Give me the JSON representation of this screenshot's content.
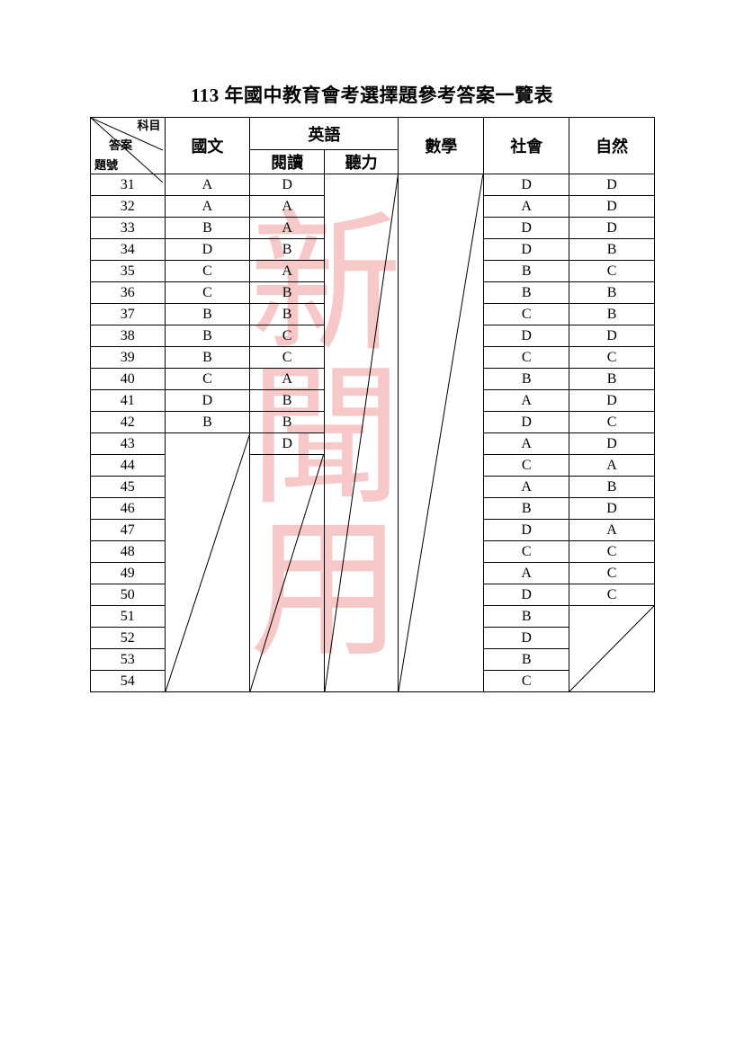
{
  "title": "113 年國中教育會考選擇題參考答案一覽表",
  "watermark_text": "新聞用",
  "watermark_color": "#f7c8c8",
  "border_color": "#000000",
  "corner_labels": {
    "top": "科目",
    "mid": "答案",
    "bot": "題號"
  },
  "columns": {
    "guowen": "國文",
    "english": "英語",
    "english_read": "閱讀",
    "english_listen": "聽力",
    "math": "數學",
    "social": "社會",
    "nature": "自然"
  },
  "col_widths": {
    "num": 80,
    "guowen": 92,
    "eng_read": 80,
    "eng_listen": 80,
    "math": 92,
    "social": 92,
    "nature": 92
  },
  "row_start": 31,
  "row_end": 54,
  "answers": {
    "guowen": [
      "A",
      "A",
      "B",
      "D",
      "C",
      "C",
      "B",
      "B",
      "B",
      "C",
      "D",
      "B",
      "",
      "",
      "",
      "",
      "",
      "",
      "",
      "",
      "",
      "",
      "",
      ""
    ],
    "eng_read": [
      "D",
      "A",
      "A",
      "B",
      "A",
      "B",
      "B",
      "C",
      "C",
      "A",
      "B",
      "B",
      "D",
      "",
      "",
      "",
      "",
      "",
      "",
      "",
      "",
      "",
      "",
      ""
    ],
    "social": [
      "D",
      "A",
      "D",
      "D",
      "B",
      "B",
      "C",
      "D",
      "C",
      "B",
      "A",
      "D",
      "A",
      "C",
      "A",
      "B",
      "D",
      "C",
      "A",
      "D",
      "B",
      "D",
      "B",
      "C"
    ],
    "nature": [
      "D",
      "D",
      "D",
      "B",
      "C",
      "B",
      "B",
      "D",
      "C",
      "B",
      "D",
      "C",
      "D",
      "A",
      "B",
      "D",
      "A",
      "C",
      "C",
      "C",
      "",
      "",
      "",
      ""
    ]
  }
}
